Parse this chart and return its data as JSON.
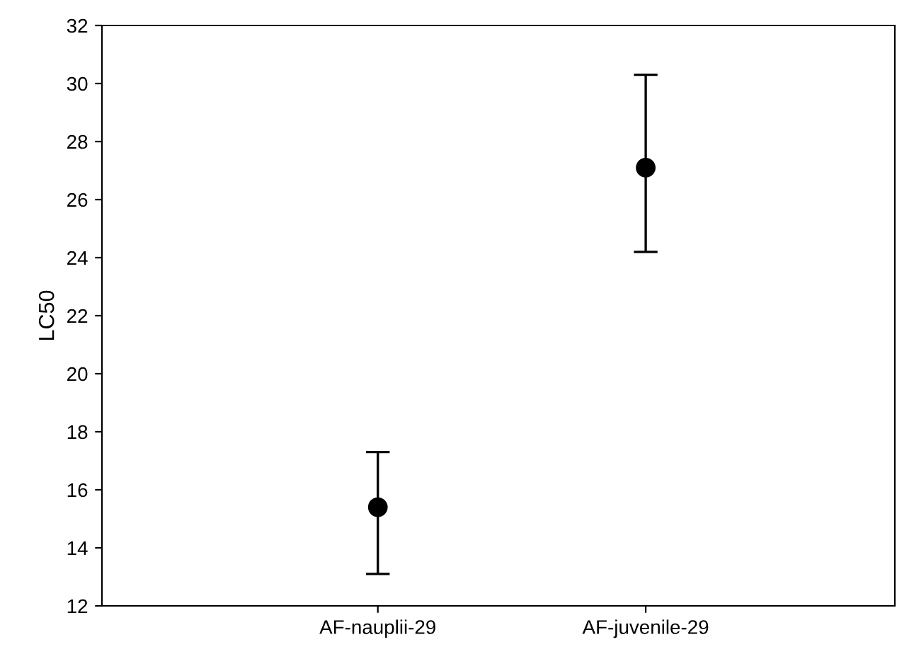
{
  "chart_data": {
    "type": "scatter",
    "ylabel": "LC50",
    "categories": [
      "AF-nauplii-29",
      "AF-juvenile-29"
    ],
    "values": [
      15.4,
      27.1
    ],
    "errors": [
      [
        13.1,
        17.3
      ],
      [
        24.2,
        30.3
      ]
    ],
    "color": "#000000",
    "marker": "circle",
    "ylim": [
      12,
      32
    ],
    "yticks": [
      12,
      14,
      16,
      18,
      20,
      22,
      24,
      26,
      28,
      30,
      32
    ],
    "grid": false
  }
}
